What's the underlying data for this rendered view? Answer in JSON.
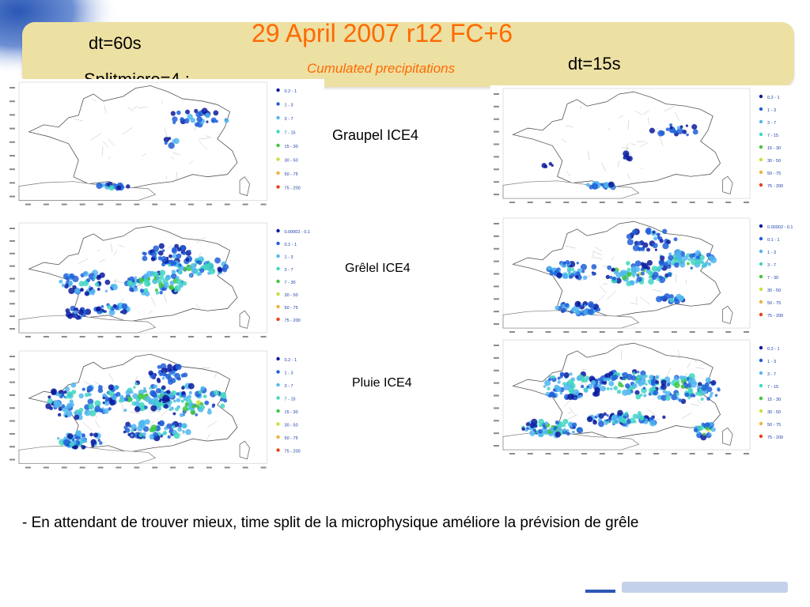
{
  "slide": {
    "title": "29 April 2007 r12 FC+6",
    "subtitle": "Cumulated precipitations",
    "left_dt": "dt=60s",
    "left_split": "Splitmicro=4 :",
    "right_dt": "dt=15s"
  },
  "rows": [
    {
      "label": "Graupel ICE4",
      "legend": [
        "0.2 - 1",
        "1 - 3",
        "3 - 7",
        "7 - 15",
        "15 - 30",
        "30 - 50",
        "50 - 75",
        "75 - 200"
      ]
    },
    {
      "label": "Grêlel ICE4",
      "legend": [
        "0.00002 - 0.1",
        "0.1 - 1",
        "1 - 3",
        "3 - 7",
        "7 - 30",
        "30 - 50",
        "50 - 75",
        "75 - 200"
      ]
    },
    {
      "label": "Pluie ICE4",
      "legend": [
        "0.2 - 1",
        "1 - 3",
        "3 - 7",
        "7 - 15",
        "15 - 30",
        "30 - 50",
        "50 - 75",
        "75 - 200"
      ]
    }
  ],
  "legend_colors": [
    "#0a1a9c",
    "#1f5fd8",
    "#4fb6f0",
    "#3fd6c0",
    "#3ec63e",
    "#c8e03a",
    "#f0b23a",
    "#e8401e"
  ],
  "note": "-  En attendant de trouver mieux, time split de la microphysique améliore la prévision de grêle"
}
